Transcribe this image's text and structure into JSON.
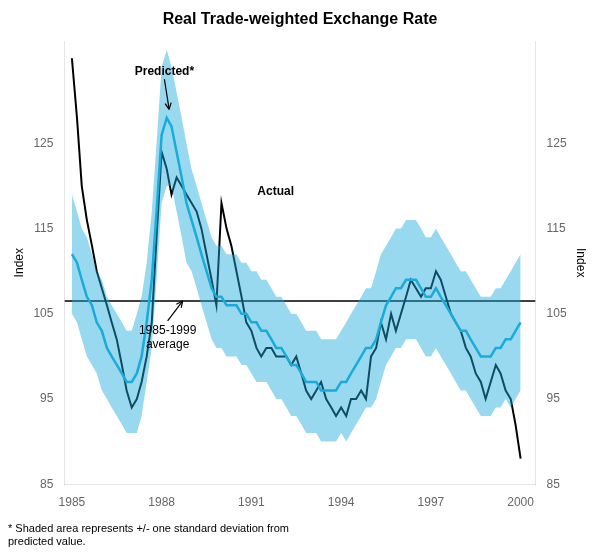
{
  "chart_data": {
    "type": "line",
    "title": "Real Trade-weighted Exchange Rate",
    "y_label": "Index",
    "y2_label": "Index",
    "footnote": "* Shaded area represents +/- one standard deviation from\npredicted value.",
    "x": [
      1985.0,
      1985.17,
      1985.33,
      1985.5,
      1985.67,
      1985.83,
      1986.0,
      1986.17,
      1986.33,
      1986.5,
      1986.67,
      1986.83,
      1987.0,
      1987.17,
      1987.33,
      1987.5,
      1987.67,
      1987.83,
      1988.0,
      1988.17,
      1988.33,
      1988.5,
      1988.67,
      1988.83,
      1989.0,
      1989.17,
      1989.33,
      1989.5,
      1989.67,
      1989.83,
      1990.0,
      1990.17,
      1990.33,
      1990.5,
      1990.67,
      1990.83,
      1991.0,
      1991.17,
      1991.33,
      1991.5,
      1991.67,
      1991.83,
      1992.0,
      1992.17,
      1992.33,
      1992.5,
      1992.67,
      1992.83,
      1993.0,
      1993.17,
      1993.33,
      1993.5,
      1993.67,
      1993.83,
      1994.0,
      1994.17,
      1994.33,
      1994.5,
      1994.67,
      1994.83,
      1995.0,
      1995.17,
      1995.33,
      1995.5,
      1995.67,
      1995.83,
      1996.0,
      1996.17,
      1996.33,
      1996.5,
      1996.67,
      1996.83,
      1997.0,
      1997.17,
      1997.33,
      1997.5,
      1997.67,
      1997.83,
      1998.0,
      1998.17,
      1998.33,
      1998.5,
      1998.67,
      1998.83,
      1999.0,
      1999.17,
      1999.33,
      1999.5,
      1999.67,
      1999.83,
      2000.0
    ],
    "series": [
      {
        "name": "Predicted*",
        "color": "#1aabdb",
        "values": [
          112,
          111,
          109,
          107,
          106,
          104,
          103,
          101,
          100,
          99,
          98,
          97,
          97,
          98,
          100,
          104,
          109,
          117,
          126,
          128,
          127,
          124,
          121,
          118,
          116,
          114,
          112,
          110,
          108,
          107,
          107,
          106,
          106,
          106,
          105,
          105,
          104,
          104,
          103,
          103,
          102,
          101,
          101,
          100,
          99,
          99,
          98,
          97,
          97,
          97,
          96,
          96,
          96,
          96,
          97,
          97,
          98,
          99,
          100,
          101,
          101,
          102,
          104,
          106,
          107,
          108,
          108,
          109,
          109,
          109,
          108,
          107,
          107,
          108,
          107,
          106,
          105,
          104,
          103,
          103,
          102,
          101,
          100,
          100,
          100,
          101,
          101,
          102,
          102,
          103,
          104
        ],
        "upper": [
          119,
          117,
          115,
          114,
          112,
          110,
          109,
          107,
          106,
          105,
          104,
          103,
          103,
          105,
          107,
          111,
          117,
          125,
          134,
          136,
          134,
          131,
          128,
          125,
          122,
          120,
          118,
          116,
          114,
          113,
          113,
          112,
          112,
          112,
          111,
          111,
          110,
          110,
          109,
          109,
          108,
          107,
          107,
          106,
          105,
          105,
          104,
          103,
          103,
          103,
          102,
          102,
          102,
          102,
          103,
          104,
          105,
          106,
          107,
          108,
          108,
          110,
          112,
          113,
          114,
          115,
          115,
          116,
          116,
          116,
          115,
          114,
          114,
          115,
          114,
          113,
          112,
          111,
          110,
          110,
          109,
          108,
          107,
          107,
          107,
          108,
          108,
          109,
          110,
          111,
          112
        ],
        "lower": [
          105,
          104,
          102,
          100,
          99,
          98,
          96,
          95,
          94,
          93,
          92,
          91,
          91,
          91,
          93,
          97,
          101,
          109,
          118,
          120,
          120,
          117,
          114,
          111,
          110,
          108,
          106,
          104,
          102,
          101,
          101,
          100,
          100,
          100,
          99,
          99,
          98,
          97,
          97,
          97,
          96,
          95,
          95,
          94,
          93,
          93,
          92,
          91,
          91,
          91,
          90,
          90,
          90,
          90,
          91,
          90,
          91,
          92,
          93,
          94,
          94,
          95,
          97,
          99,
          100,
          101,
          101,
          102,
          102,
          102,
          101,
          100,
          100,
          101,
          100,
          99,
          98,
          97,
          96,
          96,
          95,
          94,
          93,
          93,
          93,
          94,
          94,
          95,
          94,
          95,
          96
        ]
      },
      {
        "name": "Actual",
        "color": "#000000",
        "values": [
          135,
          128,
          120,
          116,
          113,
          110,
          108,
          106,
          104,
          102,
          99,
          96,
          94,
          95,
          97,
          100,
          104,
          114,
          124,
          122,
          119,
          121,
          120,
          119,
          118,
          117,
          115,
          112,
          109,
          106,
          118,
          115,
          113,
          110,
          107,
          104,
          103,
          101,
          100,
          101,
          101,
          100,
          100,
          100,
          99,
          100,
          98,
          96,
          95,
          96,
          97,
          95,
          94,
          93,
          94,
          93,
          95,
          95,
          96,
          95,
          100,
          101,
          104,
          102,
          105,
          103,
          105,
          107,
          109,
          108,
          107,
          108,
          108,
          110,
          109,
          107,
          105,
          104,
          103,
          101,
          100,
          98,
          97,
          95,
          97,
          99,
          98,
          96,
          95,
          92,
          88
        ]
      }
    ],
    "average": 106.5,
    "annotations": [
      {
        "text": "Predicted*",
        "x": 1987.1,
        "y": 133,
        "arrow_x": 1988.25,
        "arrow_y": 129
      },
      {
        "text": "Actual",
        "x": 1991.2,
        "y": 119
      },
      {
        "text": "1985-1999\naverage",
        "x": 1988.2,
        "y": 101,
        "arrow_x": 1988.7,
        "arrow_y": 106.5
      }
    ],
    "xlim": [
      1984.75,
      2000.5
    ],
    "xticks": [
      1985,
      1988,
      1991,
      1994,
      1997,
      2000
    ],
    "ylim": [
      85,
      137
    ],
    "yticks": [
      85,
      95,
      105,
      115,
      125
    ],
    "y2lim": [
      85,
      137
    ],
    "y2ticks": [
      85,
      95,
      105,
      115,
      125
    ],
    "grid": false
  }
}
